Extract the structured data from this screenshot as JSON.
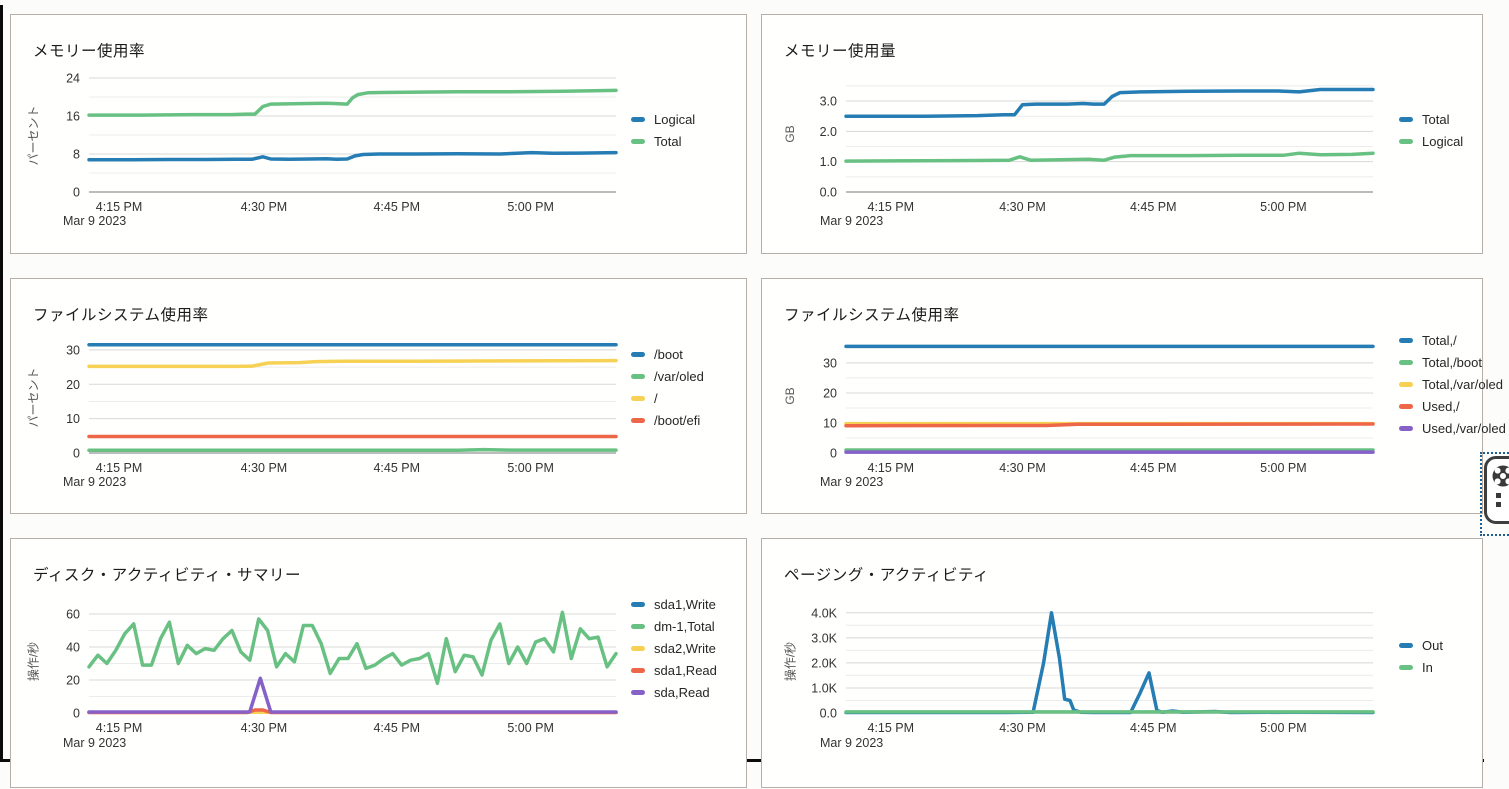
{
  "page": {
    "background": "#fcfcfb",
    "frame_color": "#0b0b0b",
    "panel_border_color": "#b7afa7"
  },
  "palette": {
    "blue": "#267db3",
    "green": "#68c182",
    "yellow": "#f7d154",
    "red": "#ed6647",
    "purple": "#8561c8",
    "grid_major": "#d8d8d8",
    "grid_minor": "#ececec",
    "axis_line": "#a6a6a6"
  },
  "date_label": "Mar 9 2023",
  "x_tick_labels": [
    "4:15 PM",
    "4:30 PM",
    "4:45 PM",
    "5:00 PM"
  ],
  "overlay_widget": {
    "name": "floating-capture-widget",
    "icons": [
      "wheel-icon",
      "drag-dots-icon"
    ]
  },
  "chart_data": [
    {
      "id": "memory-usage-percent",
      "type": "line",
      "title": "メモリー使用率",
      "ylabel": "パーセント",
      "ylim": [
        0,
        24
      ],
      "y_major": [
        {
          "v": 0,
          "label": "0"
        },
        {
          "v": 8,
          "label": "8"
        },
        {
          "v": 16,
          "label": "16"
        },
        {
          "v": 24,
          "label": "24"
        }
      ],
      "y_minor": [
        4,
        12,
        20
      ],
      "x_ticks": [
        "4:15 PM",
        "4:30 PM",
        "4:45 PM",
        "5:00 PM"
      ],
      "date": "Mar 9 2023",
      "grid": true,
      "legend_position": "right",
      "series": [
        {
          "name": "Logical",
          "color": "#267db3",
          "points": [
            [
              0,
              6.8
            ],
            [
              0.08,
              6.8
            ],
            [
              0.15,
              6.85
            ],
            [
              0.22,
              6.85
            ],
            [
              0.28,
              6.9
            ],
            [
              0.31,
              6.9
            ],
            [
              0.33,
              7.4
            ],
            [
              0.345,
              6.95
            ],
            [
              0.38,
              6.9
            ],
            [
              0.42,
              6.95
            ],
            [
              0.45,
              7.0
            ],
            [
              0.47,
              6.9
            ],
            [
              0.49,
              6.95
            ],
            [
              0.505,
              7.6
            ],
            [
              0.52,
              7.9
            ],
            [
              0.55,
              8.0
            ],
            [
              0.62,
              8.0
            ],
            [
              0.7,
              8.05
            ],
            [
              0.78,
              8.0
            ],
            [
              0.84,
              8.3
            ],
            [
              0.88,
              8.15
            ],
            [
              0.93,
              8.2
            ],
            [
              1,
              8.3
            ]
          ]
        },
        {
          "name": "Total",
          "color": "#68c182",
          "points": [
            [
              0,
              16.2
            ],
            [
              0.1,
              16.2
            ],
            [
              0.2,
              16.3
            ],
            [
              0.27,
              16.3
            ],
            [
              0.3,
              16.4
            ],
            [
              0.315,
              16.4
            ],
            [
              0.33,
              18.0
            ],
            [
              0.345,
              18.5
            ],
            [
              0.4,
              18.6
            ],
            [
              0.45,
              18.7
            ],
            [
              0.47,
              18.6
            ],
            [
              0.49,
              18.5
            ],
            [
              0.5,
              19.8
            ],
            [
              0.51,
              20.5
            ],
            [
              0.53,
              20.9
            ],
            [
              0.6,
              21.0
            ],
            [
              0.7,
              21.1
            ],
            [
              0.8,
              21.1
            ],
            [
              0.9,
              21.2
            ],
            [
              1,
              21.4
            ]
          ]
        }
      ]
    },
    {
      "id": "memory-usage-gb",
      "type": "line",
      "title": "メモリー使用量",
      "ylabel": "GB",
      "ylim": [
        0,
        3.76
      ],
      "y_major": [
        {
          "v": 0,
          "label": "0.0"
        },
        {
          "v": 1,
          "label": "1.0"
        },
        {
          "v": 2,
          "label": "2.0"
        },
        {
          "v": 3,
          "label": "3.0"
        }
      ],
      "y_minor": [
        0.5,
        1.5,
        2.5,
        3.5
      ],
      "x_ticks": [
        "4:15 PM",
        "4:30 PM",
        "4:45 PM",
        "5:00 PM"
      ],
      "date": "Mar 9 2023",
      "grid": true,
      "legend_position": "right",
      "series": [
        {
          "name": "Total",
          "color": "#267db3",
          "points": [
            [
              0,
              2.5
            ],
            [
              0.15,
              2.5
            ],
            [
              0.25,
              2.52
            ],
            [
              0.3,
              2.55
            ],
            [
              0.32,
              2.55
            ],
            [
              0.335,
              2.88
            ],
            [
              0.36,
              2.9
            ],
            [
              0.42,
              2.9
            ],
            [
              0.45,
              2.92
            ],
            [
              0.47,
              2.9
            ],
            [
              0.49,
              2.9
            ],
            [
              0.505,
              3.15
            ],
            [
              0.52,
              3.28
            ],
            [
              0.56,
              3.3
            ],
            [
              0.65,
              3.32
            ],
            [
              0.75,
              3.33
            ],
            [
              0.82,
              3.33
            ],
            [
              0.86,
              3.3
            ],
            [
              0.9,
              3.38
            ],
            [
              1,
              3.38
            ]
          ]
        },
        {
          "name": "Logical",
          "color": "#68c182",
          "points": [
            [
              0,
              1.02
            ],
            [
              0.15,
              1.03
            ],
            [
              0.25,
              1.04
            ],
            [
              0.31,
              1.05
            ],
            [
              0.33,
              1.16
            ],
            [
              0.35,
              1.05
            ],
            [
              0.42,
              1.07
            ],
            [
              0.46,
              1.08
            ],
            [
              0.49,
              1.05
            ],
            [
              0.51,
              1.15
            ],
            [
              0.54,
              1.2
            ],
            [
              0.65,
              1.2
            ],
            [
              0.75,
              1.21
            ],
            [
              0.83,
              1.21
            ],
            [
              0.86,
              1.28
            ],
            [
              0.9,
              1.23
            ],
            [
              0.96,
              1.24
            ],
            [
              1,
              1.28
            ]
          ]
        }
      ]
    },
    {
      "id": "filesystem-usage-percent",
      "type": "line",
      "title": "ファイルシステム使用率",
      "ylabel": "パーセント",
      "ylim": [
        0,
        32.6
      ],
      "y_major": [
        {
          "v": 0,
          "label": "0"
        },
        {
          "v": 10,
          "label": "10"
        },
        {
          "v": 20,
          "label": "20"
        },
        {
          "v": 30,
          "label": "30"
        }
      ],
      "y_minor": [
        5,
        15,
        25
      ],
      "x_ticks": [
        "4:15 PM",
        "4:30 PM",
        "4:45 PM",
        "5:00 PM"
      ],
      "date": "Mar 9 2023",
      "grid": true,
      "legend_position": "right",
      "series": [
        {
          "name": "/boot",
          "color": "#267db3",
          "points": [
            [
              0,
              31.5
            ],
            [
              1,
              31.5
            ]
          ]
        },
        {
          "name": "/var/oled",
          "color": "#68c182",
          "points": [
            [
              0,
              0.8
            ],
            [
              0.7,
              0.8
            ],
            [
              0.75,
              1.0
            ],
            [
              0.8,
              0.85
            ],
            [
              1,
              0.85
            ]
          ]
        },
        {
          "name": "/",
          "color": "#f7d154",
          "points": [
            [
              0,
              25.2
            ],
            [
              0.28,
              25.2
            ],
            [
              0.31,
              25.3
            ],
            [
              0.34,
              26.2
            ],
            [
              0.4,
              26.3
            ],
            [
              0.43,
              26.6
            ],
            [
              0.48,
              26.7
            ],
            [
              0.6,
              26.7
            ],
            [
              0.8,
              26.8
            ],
            [
              1,
              26.9
            ]
          ]
        },
        {
          "name": "/boot/efi",
          "color": "#ed6647",
          "points": [
            [
              0,
              4.8
            ],
            [
              1,
              4.8
            ]
          ]
        }
      ]
    },
    {
      "id": "filesystem-usage-gb",
      "type": "line",
      "title": "ファイルシステム使用率",
      "ylabel": "GB",
      "ylim": [
        0,
        37.3
      ],
      "y_major": [
        {
          "v": 0,
          "label": "0"
        },
        {
          "v": 10,
          "label": "10"
        },
        {
          "v": 20,
          "label": "20"
        },
        {
          "v": 30,
          "label": "30"
        }
      ],
      "y_minor": [
        5,
        15,
        25,
        35
      ],
      "x_ticks": [
        "4:15 PM",
        "4:30 PM",
        "4:45 PM",
        "5:00 PM"
      ],
      "date": "Mar 9 2023",
      "grid": true,
      "legend_position": "right",
      "series": [
        {
          "name": "Total,/",
          "color": "#267db3",
          "points": [
            [
              0,
              35.5
            ],
            [
              1,
              35.5
            ]
          ]
        },
        {
          "name": "Total,/boot",
          "color": "#68c182",
          "points": [
            [
              0,
              1.0
            ],
            [
              1,
              1.0
            ]
          ]
        },
        {
          "name": "Total,/var/oled",
          "color": "#f7d154",
          "points": [
            [
              0,
              9.8
            ],
            [
              1,
              9.8
            ]
          ]
        },
        {
          "name": "Used,/",
          "color": "#ed6647",
          "points": [
            [
              0,
              9.1
            ],
            [
              0.38,
              9.15
            ],
            [
              0.44,
              9.55
            ],
            [
              0.6,
              9.6
            ],
            [
              1,
              9.65
            ]
          ]
        },
        {
          "name": "Used,/var/oled",
          "color": "#8561c8",
          "points": [
            [
              0,
              0.3
            ],
            [
              1,
              0.3
            ]
          ]
        }
      ]
    },
    {
      "id": "disk-activity-summary",
      "type": "line",
      "title": "ディスク・アクティビティ・サマリー",
      "ylabel": "操作/秒",
      "ylim": [
        0,
        63
      ],
      "y_major": [
        {
          "v": 0,
          "label": "0"
        },
        {
          "v": 20,
          "label": "20"
        },
        {
          "v": 40,
          "label": "40"
        },
        {
          "v": 60,
          "label": "60"
        }
      ],
      "y_minor": [
        10,
        30,
        50
      ],
      "x_ticks": [
        "4:15 PM",
        "4:30 PM",
        "4:45 PM",
        "5:00 PM"
      ],
      "date": "Mar 9 2023",
      "grid": true,
      "legend_position": "right",
      "series": [
        {
          "name": "sda1,Write",
          "color": "#267db3",
          "points": [
            [
              0,
              0.5
            ],
            [
              1,
              0.5
            ]
          ]
        },
        {
          "name": "dm-1,Total",
          "color": "#68c182",
          "values": [
            28,
            35,
            30,
            38,
            48,
            54,
            29,
            29,
            45,
            55,
            30,
            41,
            36,
            39,
            38,
            45,
            50,
            37,
            32,
            57,
            50,
            28,
            36,
            31,
            53,
            53,
            42,
            24,
            33,
            33,
            42,
            27,
            29,
            33,
            36,
            29,
            32,
            33,
            36,
            18,
            45,
            25,
            35,
            34,
            23,
            44,
            54,
            30,
            40,
            30,
            43,
            45,
            37,
            61,
            33,
            51,
            45,
            46,
            28,
            36
          ]
        },
        {
          "name": "sda2,Write",
          "color": "#f7d154",
          "points": [
            [
              0,
              0.4
            ],
            [
              1,
              0.4
            ]
          ]
        },
        {
          "name": "sda1,Read",
          "color": "#ed6647",
          "points": [
            [
              0,
              0.3
            ],
            [
              0.3,
              0.3
            ],
            [
              0.315,
              1.8
            ],
            [
              0.33,
              1.8
            ],
            [
              0.345,
              0.3
            ],
            [
              1,
              0.3
            ]
          ]
        },
        {
          "name": "sda,Read",
          "color": "#8561c8",
          "points": [
            [
              0,
              0.6
            ],
            [
              0.305,
              0.6
            ],
            [
              0.325,
              21
            ],
            [
              0.345,
              0.6
            ],
            [
              1,
              0.6
            ]
          ]
        }
      ]
    },
    {
      "id": "paging-activity",
      "type": "line",
      "title": "ページング・アクティビティ",
      "ylabel": "操作/秒",
      "ylim": [
        0,
        4.15
      ],
      "y_major": [
        {
          "v": 0,
          "label": "0.0"
        },
        {
          "v": 1,
          "label": "1.0K"
        },
        {
          "v": 2,
          "label": "2.0K"
        },
        {
          "v": 3,
          "label": "3.0K"
        },
        {
          "v": 4,
          "label": "4.0K"
        }
      ],
      "y_minor": [
        0.5,
        1.5,
        2.5,
        3.5
      ],
      "x_ticks": [
        "4:15 PM",
        "4:30 PM",
        "4:45 PM",
        "5:00 PM"
      ],
      "date": "Mar 9 2023",
      "grid": true,
      "legend_position": "right",
      "series": [
        {
          "name": "Out",
          "color": "#267db3",
          "points": [
            [
              0,
              0.02
            ],
            [
              0.3,
              0.02
            ],
            [
              0.355,
              0.03
            ],
            [
              0.375,
              2.0
            ],
            [
              0.39,
              4.0
            ],
            [
              0.405,
              2.2
            ],
            [
              0.415,
              0.55
            ],
            [
              0.425,
              0.5
            ],
            [
              0.432,
              0.12
            ],
            [
              0.445,
              0.03
            ],
            [
              0.47,
              0.02
            ],
            [
              0.54,
              0.02
            ],
            [
              0.558,
              0.8
            ],
            [
              0.575,
              1.6
            ],
            [
              0.59,
              0.1
            ],
            [
              0.6,
              0.03
            ],
            [
              0.62,
              0.08
            ],
            [
              0.64,
              0.03
            ],
            [
              0.7,
              0.06
            ],
            [
              0.73,
              0.02
            ],
            [
              0.85,
              0.03
            ],
            [
              1,
              0.02
            ]
          ]
        },
        {
          "name": "In",
          "color": "#68c182",
          "points": [
            [
              0,
              0.045
            ],
            [
              1,
              0.045
            ]
          ]
        }
      ]
    }
  ]
}
